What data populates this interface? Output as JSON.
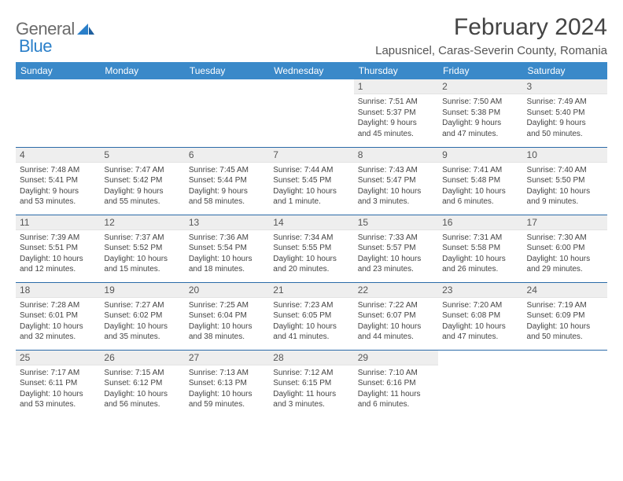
{
  "brand": {
    "part1": "General",
    "part2": "Blue",
    "logo_color": "#2a7fc9",
    "text_color": "#6b6b6b"
  },
  "header": {
    "title": "February 2024",
    "location": "Lapusnicel, Caras-Severin County, Romania"
  },
  "styling": {
    "header_row_bg": "#3a89c9",
    "header_row_text": "#ffffff",
    "row_divider": "#2a6aa8",
    "daynum_bg": "#eeeeee",
    "page_bg": "#ffffff",
    "body_text": "#444444",
    "title_fontsize": 30,
    "location_fontsize": 15,
    "dayheader_fontsize": 12,
    "daynum_fontsize": 12,
    "daytext_fontsize": 10
  },
  "dayHeaders": [
    "Sunday",
    "Monday",
    "Tuesday",
    "Wednesday",
    "Thursday",
    "Friday",
    "Saturday"
  ],
  "weeks": [
    [
      {
        "blank": true
      },
      {
        "blank": true
      },
      {
        "blank": true
      },
      {
        "blank": true
      },
      {
        "num": "1",
        "l1": "Sunrise: 7:51 AM",
        "l2": "Sunset: 5:37 PM",
        "l3": "Daylight: 9 hours",
        "l4": "and 45 minutes."
      },
      {
        "num": "2",
        "l1": "Sunrise: 7:50 AM",
        "l2": "Sunset: 5:38 PM",
        "l3": "Daylight: 9 hours",
        "l4": "and 47 minutes."
      },
      {
        "num": "3",
        "l1": "Sunrise: 7:49 AM",
        "l2": "Sunset: 5:40 PM",
        "l3": "Daylight: 9 hours",
        "l4": "and 50 minutes."
      }
    ],
    [
      {
        "num": "4",
        "l1": "Sunrise: 7:48 AM",
        "l2": "Sunset: 5:41 PM",
        "l3": "Daylight: 9 hours",
        "l4": "and 53 minutes."
      },
      {
        "num": "5",
        "l1": "Sunrise: 7:47 AM",
        "l2": "Sunset: 5:42 PM",
        "l3": "Daylight: 9 hours",
        "l4": "and 55 minutes."
      },
      {
        "num": "6",
        "l1": "Sunrise: 7:45 AM",
        "l2": "Sunset: 5:44 PM",
        "l3": "Daylight: 9 hours",
        "l4": "and 58 minutes."
      },
      {
        "num": "7",
        "l1": "Sunrise: 7:44 AM",
        "l2": "Sunset: 5:45 PM",
        "l3": "Daylight: 10 hours",
        "l4": "and 1 minute."
      },
      {
        "num": "8",
        "l1": "Sunrise: 7:43 AM",
        "l2": "Sunset: 5:47 PM",
        "l3": "Daylight: 10 hours",
        "l4": "and 3 minutes."
      },
      {
        "num": "9",
        "l1": "Sunrise: 7:41 AM",
        "l2": "Sunset: 5:48 PM",
        "l3": "Daylight: 10 hours",
        "l4": "and 6 minutes."
      },
      {
        "num": "10",
        "l1": "Sunrise: 7:40 AM",
        "l2": "Sunset: 5:50 PM",
        "l3": "Daylight: 10 hours",
        "l4": "and 9 minutes."
      }
    ],
    [
      {
        "num": "11",
        "l1": "Sunrise: 7:39 AM",
        "l2": "Sunset: 5:51 PM",
        "l3": "Daylight: 10 hours",
        "l4": "and 12 minutes."
      },
      {
        "num": "12",
        "l1": "Sunrise: 7:37 AM",
        "l2": "Sunset: 5:52 PM",
        "l3": "Daylight: 10 hours",
        "l4": "and 15 minutes."
      },
      {
        "num": "13",
        "l1": "Sunrise: 7:36 AM",
        "l2": "Sunset: 5:54 PM",
        "l3": "Daylight: 10 hours",
        "l4": "and 18 minutes."
      },
      {
        "num": "14",
        "l1": "Sunrise: 7:34 AM",
        "l2": "Sunset: 5:55 PM",
        "l3": "Daylight: 10 hours",
        "l4": "and 20 minutes."
      },
      {
        "num": "15",
        "l1": "Sunrise: 7:33 AM",
        "l2": "Sunset: 5:57 PM",
        "l3": "Daylight: 10 hours",
        "l4": "and 23 minutes."
      },
      {
        "num": "16",
        "l1": "Sunrise: 7:31 AM",
        "l2": "Sunset: 5:58 PM",
        "l3": "Daylight: 10 hours",
        "l4": "and 26 minutes."
      },
      {
        "num": "17",
        "l1": "Sunrise: 7:30 AM",
        "l2": "Sunset: 6:00 PM",
        "l3": "Daylight: 10 hours",
        "l4": "and 29 minutes."
      }
    ],
    [
      {
        "num": "18",
        "l1": "Sunrise: 7:28 AM",
        "l2": "Sunset: 6:01 PM",
        "l3": "Daylight: 10 hours",
        "l4": "and 32 minutes."
      },
      {
        "num": "19",
        "l1": "Sunrise: 7:27 AM",
        "l2": "Sunset: 6:02 PM",
        "l3": "Daylight: 10 hours",
        "l4": "and 35 minutes."
      },
      {
        "num": "20",
        "l1": "Sunrise: 7:25 AM",
        "l2": "Sunset: 6:04 PM",
        "l3": "Daylight: 10 hours",
        "l4": "and 38 minutes."
      },
      {
        "num": "21",
        "l1": "Sunrise: 7:23 AM",
        "l2": "Sunset: 6:05 PM",
        "l3": "Daylight: 10 hours",
        "l4": "and 41 minutes."
      },
      {
        "num": "22",
        "l1": "Sunrise: 7:22 AM",
        "l2": "Sunset: 6:07 PM",
        "l3": "Daylight: 10 hours",
        "l4": "and 44 minutes."
      },
      {
        "num": "23",
        "l1": "Sunrise: 7:20 AM",
        "l2": "Sunset: 6:08 PM",
        "l3": "Daylight: 10 hours",
        "l4": "and 47 minutes."
      },
      {
        "num": "24",
        "l1": "Sunrise: 7:19 AM",
        "l2": "Sunset: 6:09 PM",
        "l3": "Daylight: 10 hours",
        "l4": "and 50 minutes."
      }
    ],
    [
      {
        "num": "25",
        "l1": "Sunrise: 7:17 AM",
        "l2": "Sunset: 6:11 PM",
        "l3": "Daylight: 10 hours",
        "l4": "and 53 minutes."
      },
      {
        "num": "26",
        "l1": "Sunrise: 7:15 AM",
        "l2": "Sunset: 6:12 PM",
        "l3": "Daylight: 10 hours",
        "l4": "and 56 minutes."
      },
      {
        "num": "27",
        "l1": "Sunrise: 7:13 AM",
        "l2": "Sunset: 6:13 PM",
        "l3": "Daylight: 10 hours",
        "l4": "and 59 minutes."
      },
      {
        "num": "28",
        "l1": "Sunrise: 7:12 AM",
        "l2": "Sunset: 6:15 PM",
        "l3": "Daylight: 11 hours",
        "l4": "and 3 minutes."
      },
      {
        "num": "29",
        "l1": "Sunrise: 7:10 AM",
        "l2": "Sunset: 6:16 PM",
        "l3": "Daylight: 11 hours",
        "l4": "and 6 minutes."
      },
      {
        "blank": true
      },
      {
        "blank": true
      }
    ]
  ]
}
